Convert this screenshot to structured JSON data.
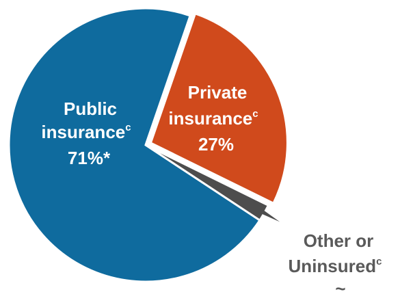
{
  "chart_data": {
    "type": "pie",
    "slices": [
      {
        "label_lines": [
          "Public",
          "insurance"
        ],
        "superscript": "c",
        "value_label": "71%*",
        "value": 71,
        "color": "#0f6b9e"
      },
      {
        "label_lines": [
          "Private",
          "insurance"
        ],
        "superscript": "c",
        "value_label": "27%",
        "value": 27,
        "color": "#d04a1c"
      },
      {
        "label_lines": [
          "Other or",
          "Uninsured"
        ],
        "superscript": "c",
        "value_label": "~",
        "value": 2,
        "color": "#4d4d4d"
      }
    ]
  }
}
